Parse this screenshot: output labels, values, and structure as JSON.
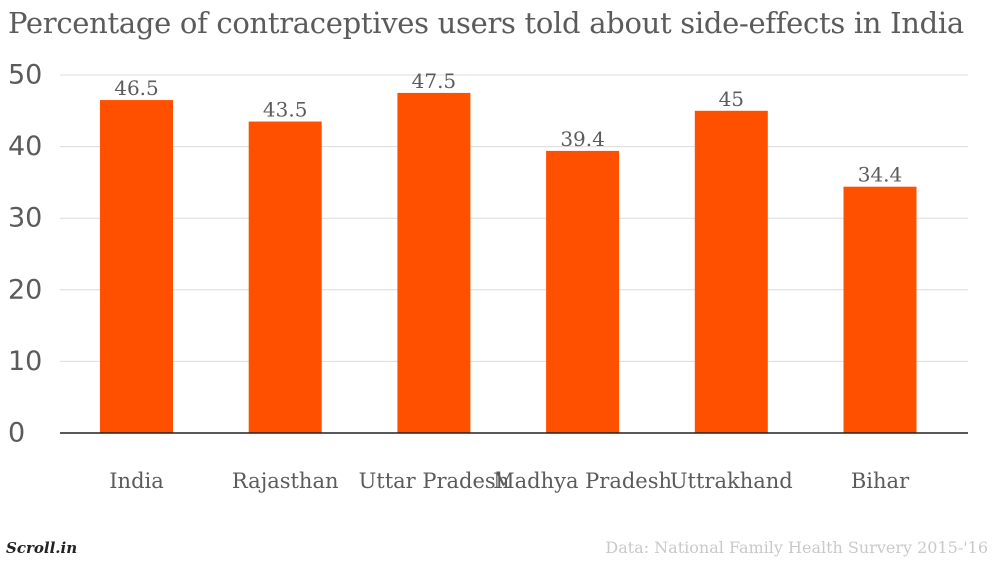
{
  "chart_data": {
    "type": "bar",
    "title": "Percentage of contraceptives users told about side-effects in India",
    "categories": [
      "India",
      "Rajasthan",
      "Uttar Pradesh",
      "Madhya Pradesh",
      "Uttrakhand",
      "Bihar"
    ],
    "values": [
      46.5,
      43.5,
      47.5,
      39.4,
      45,
      34.4
    ],
    "value_labels": [
      "46.5",
      "43.5",
      "47.5",
      "39.4",
      "45",
      "34.4"
    ],
    "ylim": [
      0,
      50
    ],
    "yticks": [
      0,
      10,
      20,
      30,
      40,
      50
    ],
    "xlabel": "",
    "ylabel": "",
    "grid": true,
    "bar_color": "#ff5000"
  },
  "footer": {
    "brand": "Scroll.in",
    "source": "Data: National Family Health Survery 2015-'16"
  }
}
